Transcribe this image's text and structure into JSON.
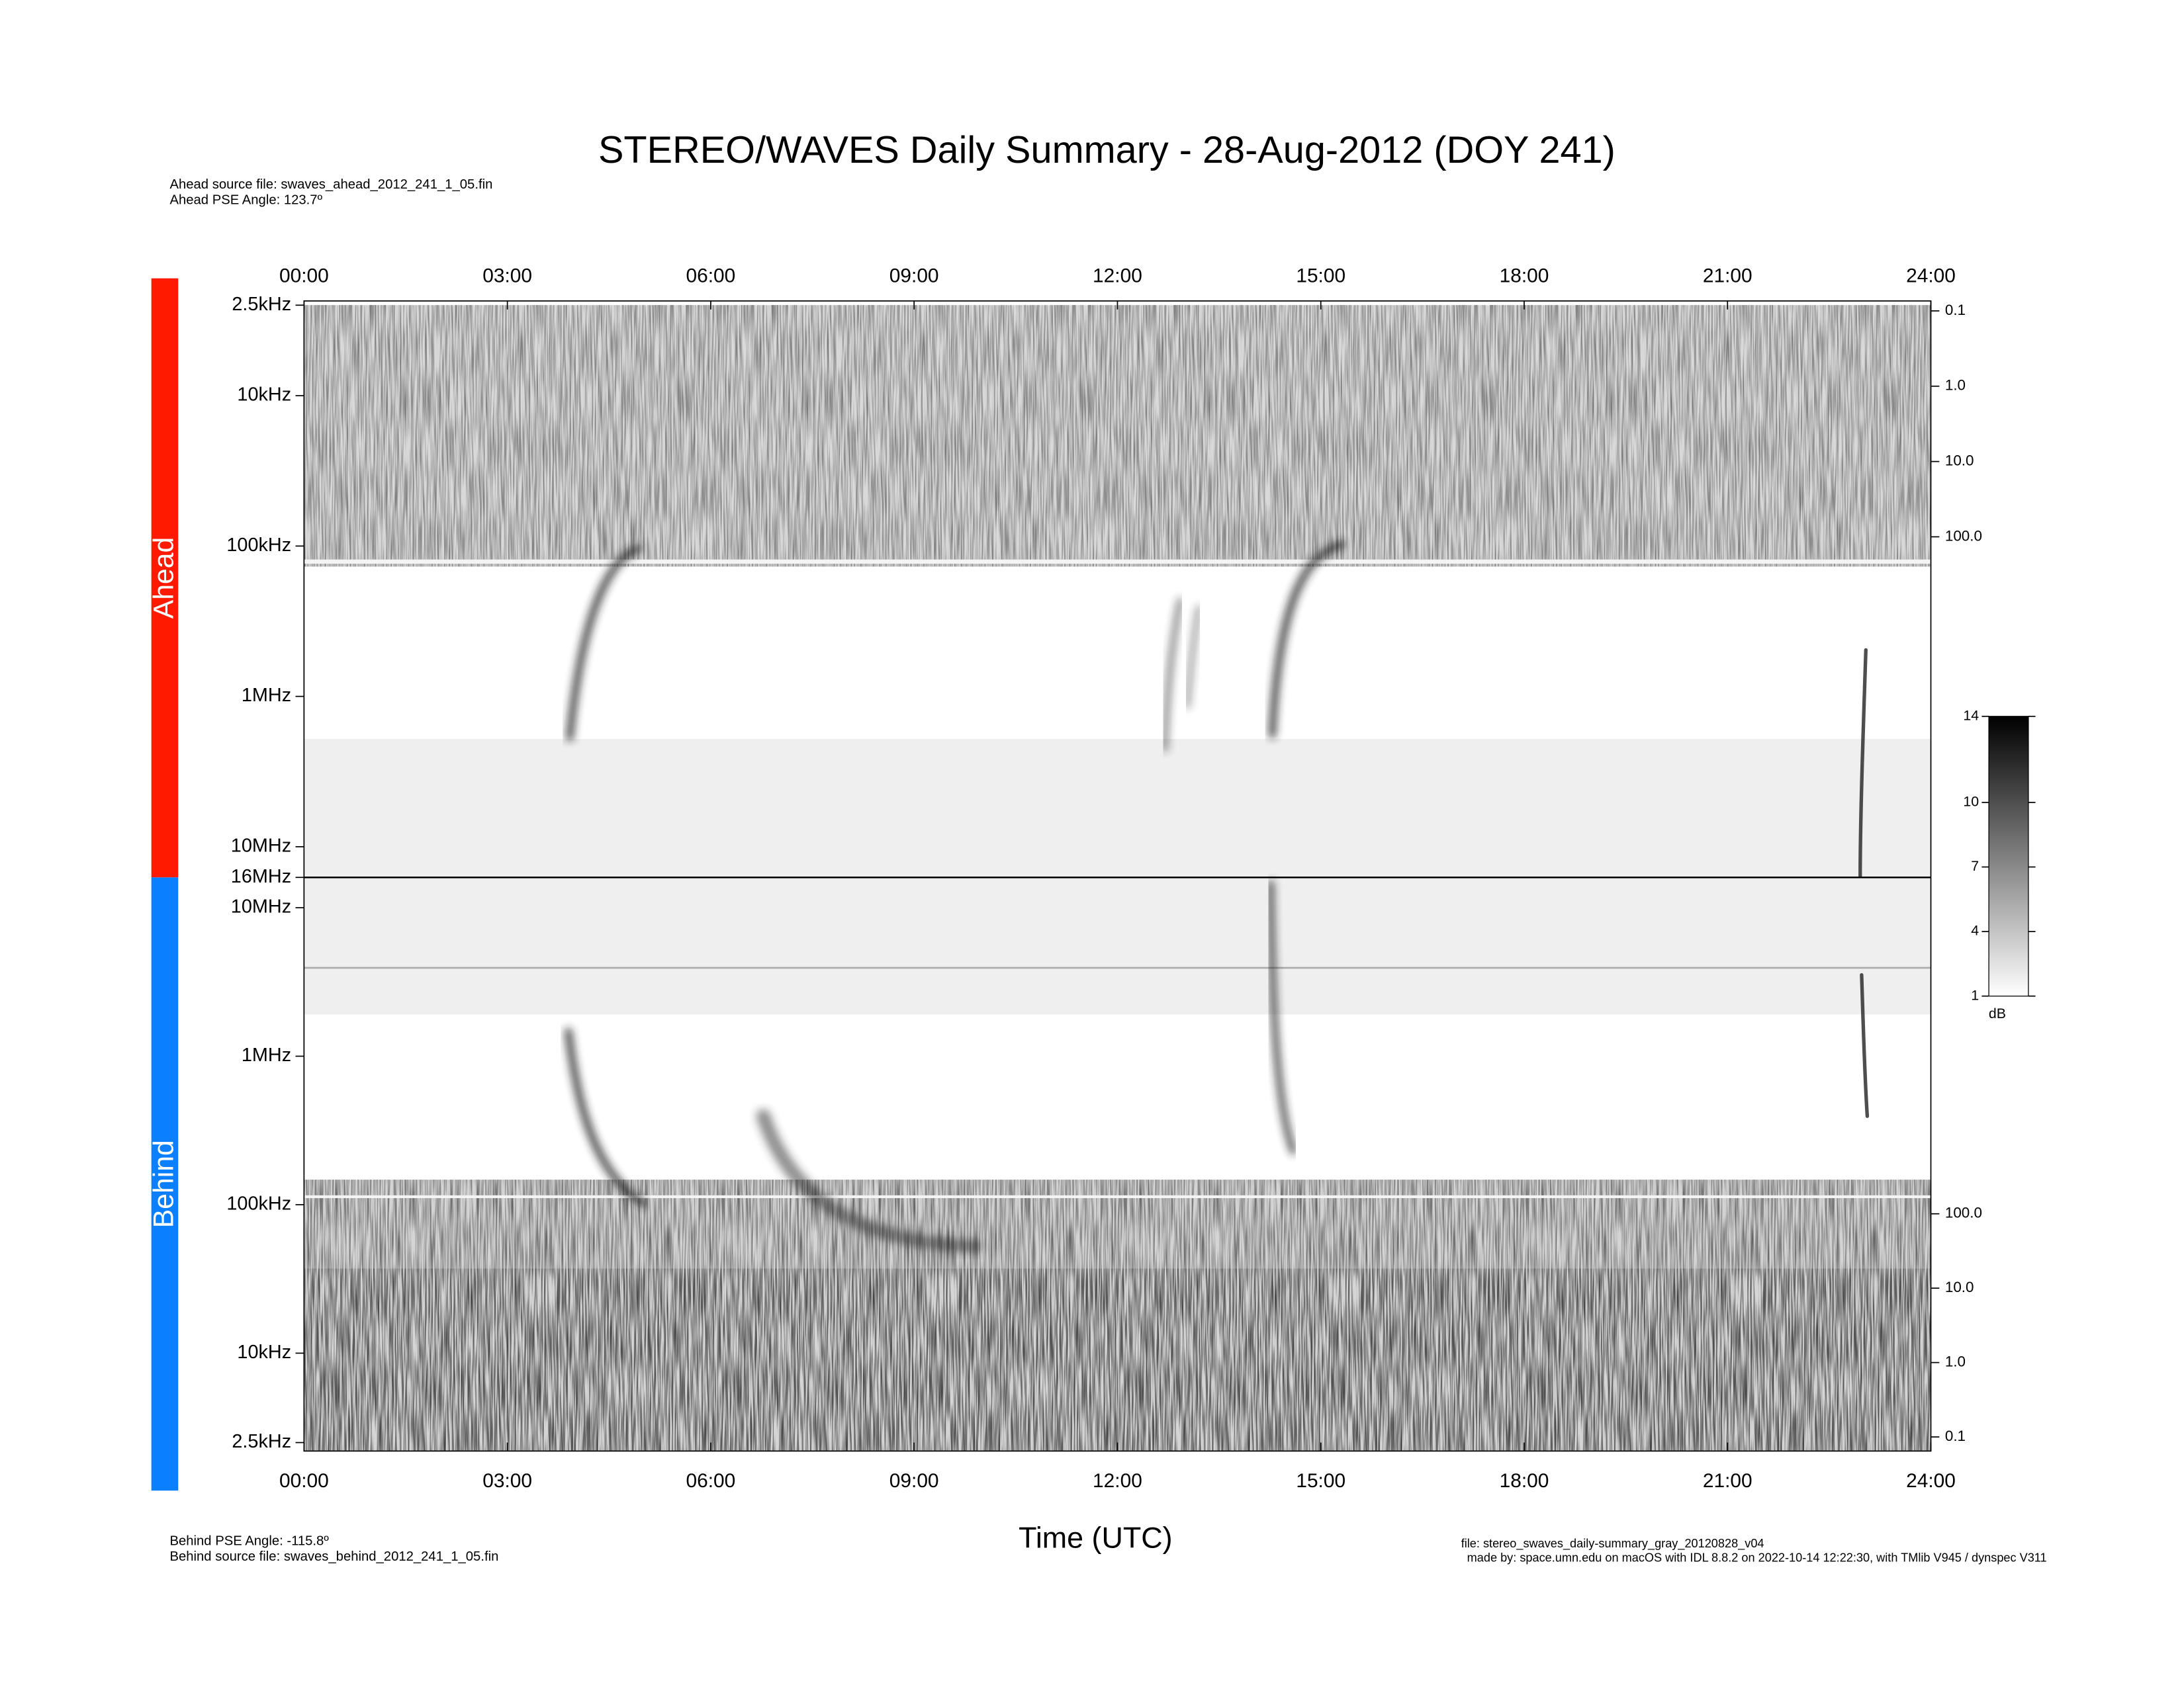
{
  "chart_data": {
    "type": "spectrogram",
    "title": "STEREO/WAVES Daily Summary - 28-Aug-2012 (DOY 241)",
    "x_label": "Time (UTC)",
    "annotations": [
      "Ahead source file: swaves_ahead_2012_241_1_05.fin",
      "Ahead PSE Angle:  123.7º",
      "Behind PSE Angle: -115.8º",
      "Behind source file: swaves_behind_2012_241_1_05.fin",
      "file: stereo_swaves_daily-summary_gray_20120828_v04",
      "made by: space.umn.edu on macOS with IDL 8.8.2 on 2022-10-14 12:22:30, with TMlib V945 / dynspec V311"
    ],
    "xlim": [
      0,
      24
    ],
    "xticks": [
      {
        "value": 0,
        "label": "00:00"
      },
      {
        "value": 3,
        "label": "03:00"
      },
      {
        "value": 6,
        "label": "06:00"
      },
      {
        "value": 9,
        "label": "09:00"
      },
      {
        "value": 12,
        "label": "12:00"
      },
      {
        "value": 15,
        "label": "15:00"
      },
      {
        "value": 18,
        "label": "18:00"
      },
      {
        "value": 21,
        "label": "21:00"
      },
      {
        "value": 24,
        "label": "24:00"
      }
    ],
    "log_scale": true,
    "panels": [
      {
        "name": "Ahead",
        "color": "#ff1a00",
        "ylim": [
          2.5,
          16000
        ],
        "yticks": [
          {
            "value": 2.5,
            "label": "2.5kHz"
          },
          {
            "value": 10,
            "label": "10kHz"
          },
          {
            "value": 100,
            "label": "100kHz"
          },
          {
            "value": 1000,
            "label": "1MHz"
          },
          {
            "value": 10000,
            "label": "10MHz"
          },
          {
            "value": 16000,
            "label": "16MHz"
          }
        ],
        "y2lim": [
          0.084,
          3330000
        ],
        "y2ticks": [
          0.1,
          {
            "value": 1,
            "label": "1.0"
          },
          {
            "value": 10,
            "label": "10.0"
          },
          {
            "value": 100,
            "label": "100.0"
          }
        ]
      },
      {
        "name": "Behind",
        "color": "#0a7fff",
        "ylim": [
          2.5,
          16000
        ],
        "yticks": [
          {
            "value": 2.5,
            "label": "2.5kHz"
          },
          {
            "value": 10,
            "label": "10kHz"
          },
          {
            "value": 100,
            "label": "100kHz"
          },
          {
            "value": 1000,
            "label": "1MHz"
          },
          {
            "value": 10000,
            "label": "10MHz"
          }
        ],
        "y2lim": [
          0.084,
          3330000
        ],
        "y2ticks": [
          0.1,
          {
            "value": 1,
            "label": "1.0"
          },
          {
            "value": 10,
            "label": "10.0"
          },
          {
            "value": 100,
            "label": "100.0"
          }
        ]
      }
    ],
    "colorbar": {
      "label": "dB",
      "lim": [
        1,
        14
      ],
      "ticks": [
        1,
        4,
        7,
        10,
        14
      ]
    }
  }
}
